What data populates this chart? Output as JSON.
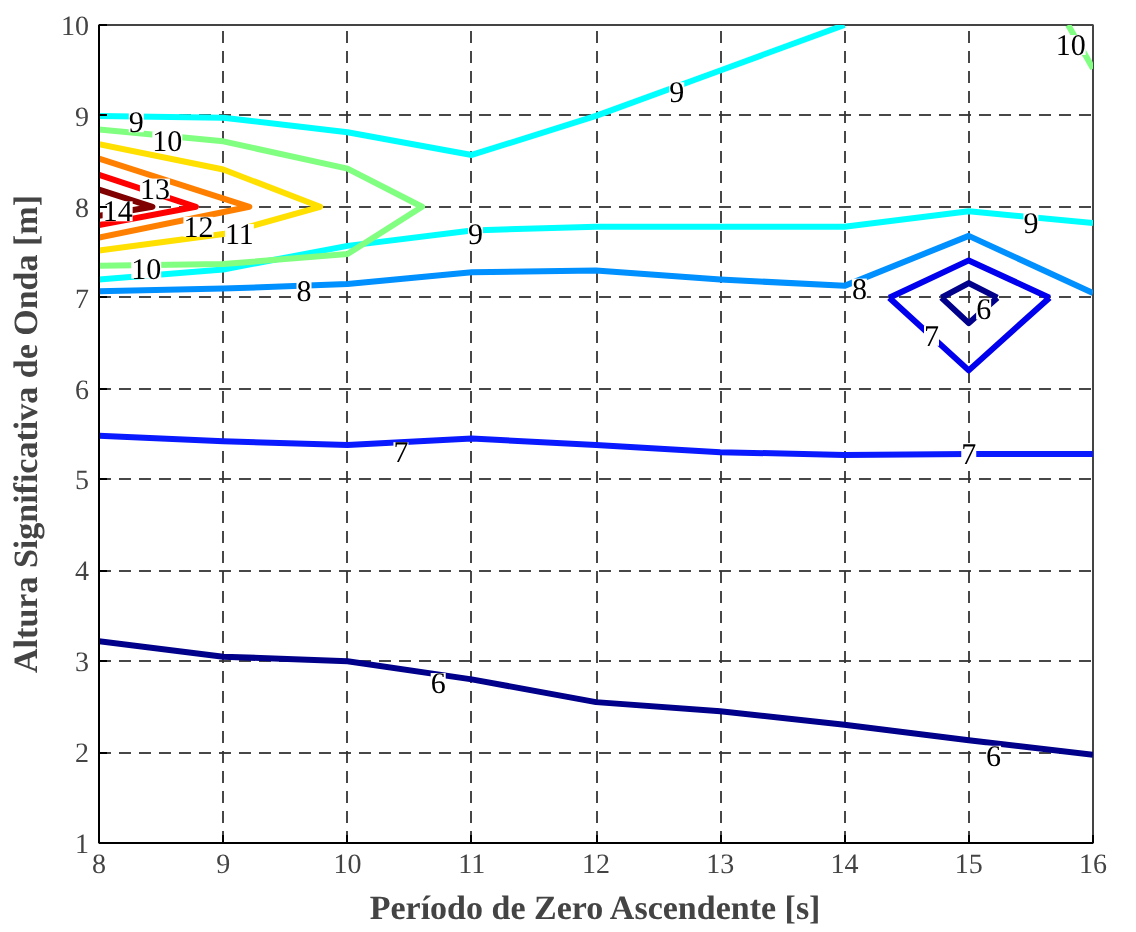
{
  "chart_data": {
    "type": "line",
    "xlabel": "Período de Zero Ascendente [s]",
    "ylabel": "Altura Significativa de Onda [m]",
    "xlim": [
      8,
      16
    ],
    "ylim": [
      1,
      10
    ],
    "xticks": [
      8,
      9,
      10,
      11,
      12,
      13,
      14,
      15,
      16
    ],
    "yticks": [
      1,
      2,
      3,
      4,
      5,
      6,
      7,
      8,
      9,
      10
    ],
    "grid": true,
    "line_style": "solid",
    "marker": "none",
    "series": [
      {
        "color": "#00008b",
        "x": [
          8,
          9,
          10,
          11,
          12,
          13,
          14,
          15,
          16
        ],
        "values": [
          3.22,
          3.05,
          3.0,
          2.8,
          2.55,
          2.45,
          2.3,
          2.13,
          1.97
        ]
      },
      {
        "color": "#0a1aff",
        "x": [
          8,
          9,
          10,
          11,
          12,
          13,
          14,
          15,
          16
        ],
        "values": [
          5.48,
          5.42,
          5.38,
          5.45,
          5.38,
          5.3,
          5.27,
          5.28,
          5.28
        ]
      },
      {
        "color": "#00008b",
        "x": [
          14.78,
          15,
          15.23
        ],
        "values": [
          7.0,
          7.16,
          7.0
        ]
      },
      {
        "color": "#00008b",
        "x": [
          14.78,
          15,
          15.23
        ],
        "values": [
          7.0,
          6.72,
          7.0
        ]
      },
      {
        "color": "#0000ee",
        "x": [
          14.36,
          15,
          15.65
        ],
        "values": [
          7.0,
          7.41,
          7.0
        ]
      },
      {
        "color": "#0000ee",
        "x": [
          14.36,
          15,
          15.65
        ],
        "values": [
          7.0,
          6.2,
          7.0
        ]
      },
      {
        "color": "#0090ff",
        "x": [
          8,
          9,
          10,
          11,
          12,
          13,
          14,
          15,
          16
        ],
        "values": [
          7.07,
          7.1,
          7.15,
          7.28,
          7.3,
          7.2,
          7.13,
          7.68,
          7.05
        ]
      },
      {
        "color": "#00ffff",
        "x": [
          8,
          9,
          10,
          11,
          12,
          13,
          14,
          15,
          16
        ],
        "values": [
          7.2,
          7.31,
          7.57,
          7.74,
          7.78,
          7.78,
          7.78,
          7.95,
          7.82
        ]
      },
      {
        "color": "#00ffff",
        "x": [
          8,
          9,
          10,
          11,
          12,
          13,
          14
        ],
        "values": [
          9.0,
          8.98,
          8.82,
          8.57,
          9.0,
          9.5,
          10.0
        ]
      },
      {
        "color": "#80ff80",
        "x": [
          8,
          9,
          10,
          10.6,
          10,
          9,
          8
        ],
        "values": [
          8.85,
          8.72,
          8.42,
          8.0,
          7.48,
          7.37,
          7.35
        ]
      },
      {
        "color": "#80ff80",
        "x": [
          15.8,
          16
        ],
        "values": [
          10.0,
          9.52
        ]
      },
      {
        "color": "#ffe000",
        "x": [
          8,
          9,
          9.78,
          9,
          8
        ],
        "values": [
          8.69,
          8.41,
          8.0,
          7.7,
          7.52
        ]
      },
      {
        "color": "#ff8000",
        "x": [
          8,
          9.21,
          8
        ],
        "values": [
          8.53,
          8.0,
          7.66
        ]
      },
      {
        "color": "#ff0000",
        "x": [
          8,
          8.78,
          8
        ],
        "values": [
          8.35,
          8.0,
          7.8
        ]
      },
      {
        "color": "#800000",
        "x": [
          8,
          8.43,
          8
        ],
        "values": [
          8.19,
          8.0,
          7.9
        ]
      }
    ],
    "annotations": [
      {
        "text": "9",
        "x": 8.3,
        "y": 8.93
      },
      {
        "text": "10",
        "x": 8.55,
        "y": 8.72
      },
      {
        "text": "12",
        "x": 8.8,
        "y": 7.78
      },
      {
        "text": "11",
        "x": 9.13,
        "y": 7.7
      },
      {
        "text": "10",
        "x": 8.38,
        "y": 7.32
      },
      {
        "text": "9",
        "x": 11.03,
        "y": 7.7
      },
      {
        "text": "8",
        "x": 9.65,
        "y": 7.07
      },
      {
        "text": "13",
        "x": 8.45,
        "y": 8.2
      },
      {
        "text": "14",
        "x": 8.15,
        "y": 7.95
      },
      {
        "text": "9",
        "x": 12.65,
        "y": 9.26
      },
      {
        "text": "10",
        "x": 15.82,
        "y": 9.78
      },
      {
        "text": "9",
        "x": 15.5,
        "y": 7.82
      },
      {
        "text": "8",
        "x": 14.12,
        "y": 7.1
      },
      {
        "text": "6",
        "x": 15.12,
        "y": 6.87
      },
      {
        "text": "7",
        "x": 14.7,
        "y": 6.58
      },
      {
        "text": "7",
        "x": 10.43,
        "y": 5.3
      },
      {
        "text": "7",
        "x": 15.0,
        "y": 5.28
      },
      {
        "text": "6",
        "x": 10.73,
        "y": 2.76
      },
      {
        "text": "6",
        "x": 15.2,
        "y": 1.96
      }
    ]
  }
}
